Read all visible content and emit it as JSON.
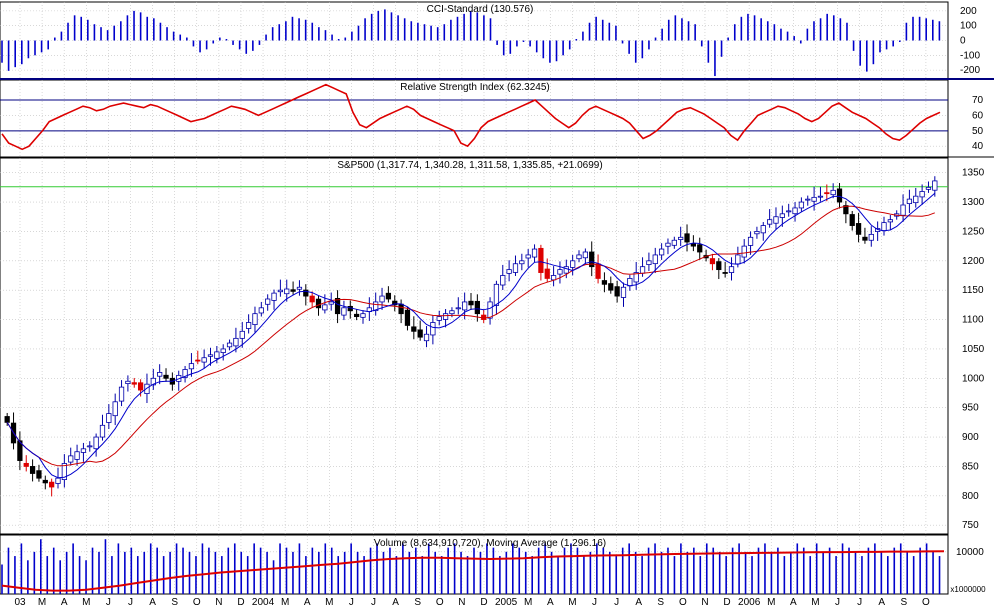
{
  "chart_data": [
    {
      "type": "bar",
      "title": "CCI-Standard (130.576)",
      "yticks": [
        200,
        100,
        0,
        -100,
        -200
      ],
      "ylim": [
        -260,
        260
      ],
      "color": "#0000cc",
      "values": [
        -150,
        -205,
        -180,
        -160,
        -120,
        -100,
        -80,
        -60,
        20,
        60,
        120,
        170,
        160,
        140,
        110,
        90,
        70,
        100,
        130,
        170,
        200,
        190,
        160,
        150,
        120,
        90,
        60,
        40,
        20,
        -40,
        -80,
        -60,
        -20,
        20,
        10,
        -30,
        -60,
        -90,
        -70,
        -30,
        40,
        90,
        110,
        130,
        160,
        150,
        140,
        120,
        90,
        70,
        40,
        10,
        20,
        60,
        100,
        150,
        180,
        200,
        210,
        190,
        170,
        150,
        130,
        120,
        110,
        100,
        90,
        110,
        140,
        160,
        180,
        200,
        190,
        170,
        150,
        -30,
        -100,
        -90,
        -40,
        -10,
        -40,
        -80,
        -120,
        -150,
        -140,
        -100,
        -60,
        10,
        60,
        120,
        160,
        140,
        120,
        100,
        -20,
        -90,
        -150,
        -120,
        -60,
        20,
        80,
        140,
        170,
        150,
        130,
        110,
        -40,
        -150,
        -240,
        -110,
        20,
        110,
        160,
        180,
        170,
        150,
        130,
        110,
        80,
        60,
        30,
        -20,
        80,
        130,
        150,
        180,
        170,
        150,
        120,
        -70,
        -170,
        -210,
        -160,
        -80,
        -60,
        -40,
        -10,
        120,
        160,
        160,
        150,
        140,
        130
      ],
      "labels": {
        "value_markers": [
          "200",
          "100",
          "0",
          "-100",
          "-200"
        ]
      }
    },
    {
      "type": "line",
      "title": "Relative Strength Index (62.3245)",
      "yticks": [
        70,
        60,
        50,
        40
      ],
      "ylim": [
        33,
        83
      ],
      "reference_lines": [
        70,
        50
      ],
      "color": "#dd0000",
      "values": [
        48,
        42,
        40,
        38,
        40,
        45,
        50,
        56,
        58,
        60,
        62,
        64,
        66,
        65,
        63,
        64,
        66,
        67,
        68,
        67,
        66,
        65,
        67,
        66,
        64,
        62,
        60,
        58,
        56,
        57,
        58,
        60,
        62,
        64,
        66,
        65,
        64,
        62,
        60,
        62,
        64,
        66,
        68,
        70,
        72,
        74,
        76,
        78,
        80,
        78,
        76,
        74,
        62,
        54,
        52,
        55,
        58,
        60,
        62,
        64,
        66,
        64,
        60,
        58,
        56,
        54,
        52,
        50,
        42,
        40,
        45,
        52,
        56,
        58,
        60,
        62,
        64,
        66,
        68,
        70,
        66,
        62,
        58,
        55,
        52,
        55,
        60,
        64,
        66,
        64,
        62,
        60,
        58,
        55,
        50,
        45,
        47,
        50,
        54,
        58,
        62,
        64,
        65,
        63,
        61,
        58,
        55,
        52,
        47,
        44,
        50,
        55,
        60,
        62,
        64,
        66,
        65,
        63,
        61,
        58,
        56,
        58,
        62,
        66,
        68,
        65,
        62,
        60,
        58,
        55,
        52,
        48,
        45,
        44,
        47,
        51,
        55,
        58,
        60,
        62
      ]
    },
    {
      "type": "candlestick",
      "title": "S&P500 (1,317.74, 1,340.28, 1,311.58, 1,335.85, +21.0699)",
      "yticks": [
        1350,
        1300,
        1250,
        1200,
        1150,
        1100,
        1050,
        1000,
        950,
        900,
        850,
        800,
        750
      ],
      "ylim": [
        735,
        1375
      ],
      "resistance": 1326,
      "close": [
        925,
        890,
        860,
        850,
        838,
        830,
        822,
        815,
        830,
        855,
        868,
        875,
        880,
        885,
        900,
        920,
        940,
        960,
        985,
        995,
        990,
        980,
        990,
        1000,
        1010,
        1000,
        990,
        1005,
        1015,
        1025,
        1030,
        1035,
        1040,
        1045,
        1050,
        1060,
        1068,
        1080,
        1095,
        1110,
        1120,
        1135,
        1145,
        1150,
        1152,
        1148,
        1155,
        1140,
        1130,
        1120,
        1125,
        1130,
        1110,
        1120,
        1115,
        1105,
        1110,
        1120,
        1130,
        1140,
        1135,
        1125,
        1110,
        1090,
        1080,
        1070,
        1075,
        1095,
        1105,
        1110,
        1115,
        1120,
        1130,
        1125,
        1110,
        1100,
        1130,
        1160,
        1175,
        1185,
        1195,
        1200,
        1210,
        1220,
        1180,
        1170,
        1175,
        1185,
        1190,
        1200,
        1210,
        1215,
        1190,
        1170,
        1160,
        1150,
        1140,
        1155,
        1170,
        1180,
        1190,
        1200,
        1210,
        1220,
        1230,
        1235,
        1240,
        1232,
        1225,
        1215,
        1205,
        1195,
        1185,
        1180,
        1190,
        1210,
        1225,
        1240,
        1250,
        1260,
        1270,
        1275,
        1280,
        1285,
        1290,
        1300,
        1305,
        1308,
        1310,
        1315,
        1320,
        1300,
        1280,
        1260,
        1245,
        1235,
        1245,
        1255,
        1265,
        1270,
        1280,
        1295,
        1305,
        1310,
        1318,
        1325,
        1336
      ],
      "ma_short": {
        "color": "#0000cc"
      },
      "ma_long": {
        "color": "#cc0000"
      },
      "xticks": [
        "03",
        "M",
        "A",
        "M",
        "J",
        "J",
        "A",
        "S",
        "O",
        "N",
        "D",
        "2004",
        "M",
        "A",
        "M",
        "J",
        "J",
        "A",
        "S",
        "O",
        "N",
        "D",
        "2005",
        "M",
        "A",
        "M",
        "J",
        "J",
        "A",
        "S",
        "O",
        "N",
        "D",
        "2006",
        "M",
        "A",
        "M",
        "J",
        "J",
        "A",
        "S",
        "O"
      ]
    },
    {
      "type": "bar",
      "title": "Volume (8,634,910,720), Moving Average (1,296.16)",
      "yticks": [
        10000
      ],
      "ylim": [
        0,
        14000
      ],
      "unit_label": "x1000000",
      "color": "#0000cc",
      "ma_color": "#dd0000",
      "values": [
        7000,
        11000,
        9000,
        12000,
        8000,
        10000,
        13000,
        9000,
        11000,
        8000,
        10000,
        12000,
        9000,
        8000,
        11000,
        10000,
        13000,
        9000,
        12000,
        10000,
        11000,
        9000,
        10000,
        12000,
        11000,
        9000,
        10000,
        12000,
        11000,
        10000,
        9000,
        12000,
        11000,
        10000,
        9000,
        11000,
        12000,
        10000,
        9000,
        12000,
        11000,
        10000,
        8000,
        12000,
        11000,
        10000,
        12000,
        9000,
        11000,
        10000,
        12000,
        11000,
        9000,
        10000,
        12000,
        10000,
        9000,
        11000,
        12000,
        10000,
        11000,
        9000,
        12000,
        10000,
        11000,
        9000,
        12000,
        10000,
        9000,
        11000,
        12000,
        10000,
        9000,
        11000,
        10000,
        12000,
        11000,
        9000,
        10000,
        12000,
        11000,
        10000,
        9000,
        11000,
        12000,
        10000,
        9000,
        11000,
        12000,
        11000,
        9000,
        10000,
        12000,
        11000,
        10000,
        9000,
        11000,
        12000,
        10000,
        9000,
        11000,
        12000,
        10000,
        11000,
        9000,
        12000,
        10000,
        11000,
        9000,
        12000,
        11000,
        10000,
        9000,
        11000,
        12000,
        10000,
        9000,
        11000,
        12000,
        10000,
        11000,
        9000,
        10000,
        12000,
        11000,
        9000,
        12000,
        10000,
        11000,
        9000,
        12000,
        11000,
        10000,
        9000,
        11000,
        12000,
        10000,
        9000,
        11000,
        12000,
        10000,
        9000,
        11000,
        12000,
        10000,
        9000
      ],
      "ma": [
        2000,
        1500,
        1000,
        800,
        800,
        1000,
        1500,
        2000,
        2600,
        3200,
        3800,
        4300,
        4700,
        5100,
        5400,
        5700,
        6000,
        6300,
        6600,
        6900,
        7200,
        7600,
        8000,
        8300,
        8500,
        8600,
        8600,
        8500,
        8400,
        8300,
        8400,
        8500,
        8700,
        8900,
        9000,
        9100,
        9150,
        9200,
        9300,
        9400,
        9500,
        9550,
        9600,
        9650,
        9700,
        9750,
        9800,
        9850,
        9900,
        9950,
        9950,
        10000,
        10000,
        10050,
        10050,
        10100,
        10150
      ]
    }
  ]
}
